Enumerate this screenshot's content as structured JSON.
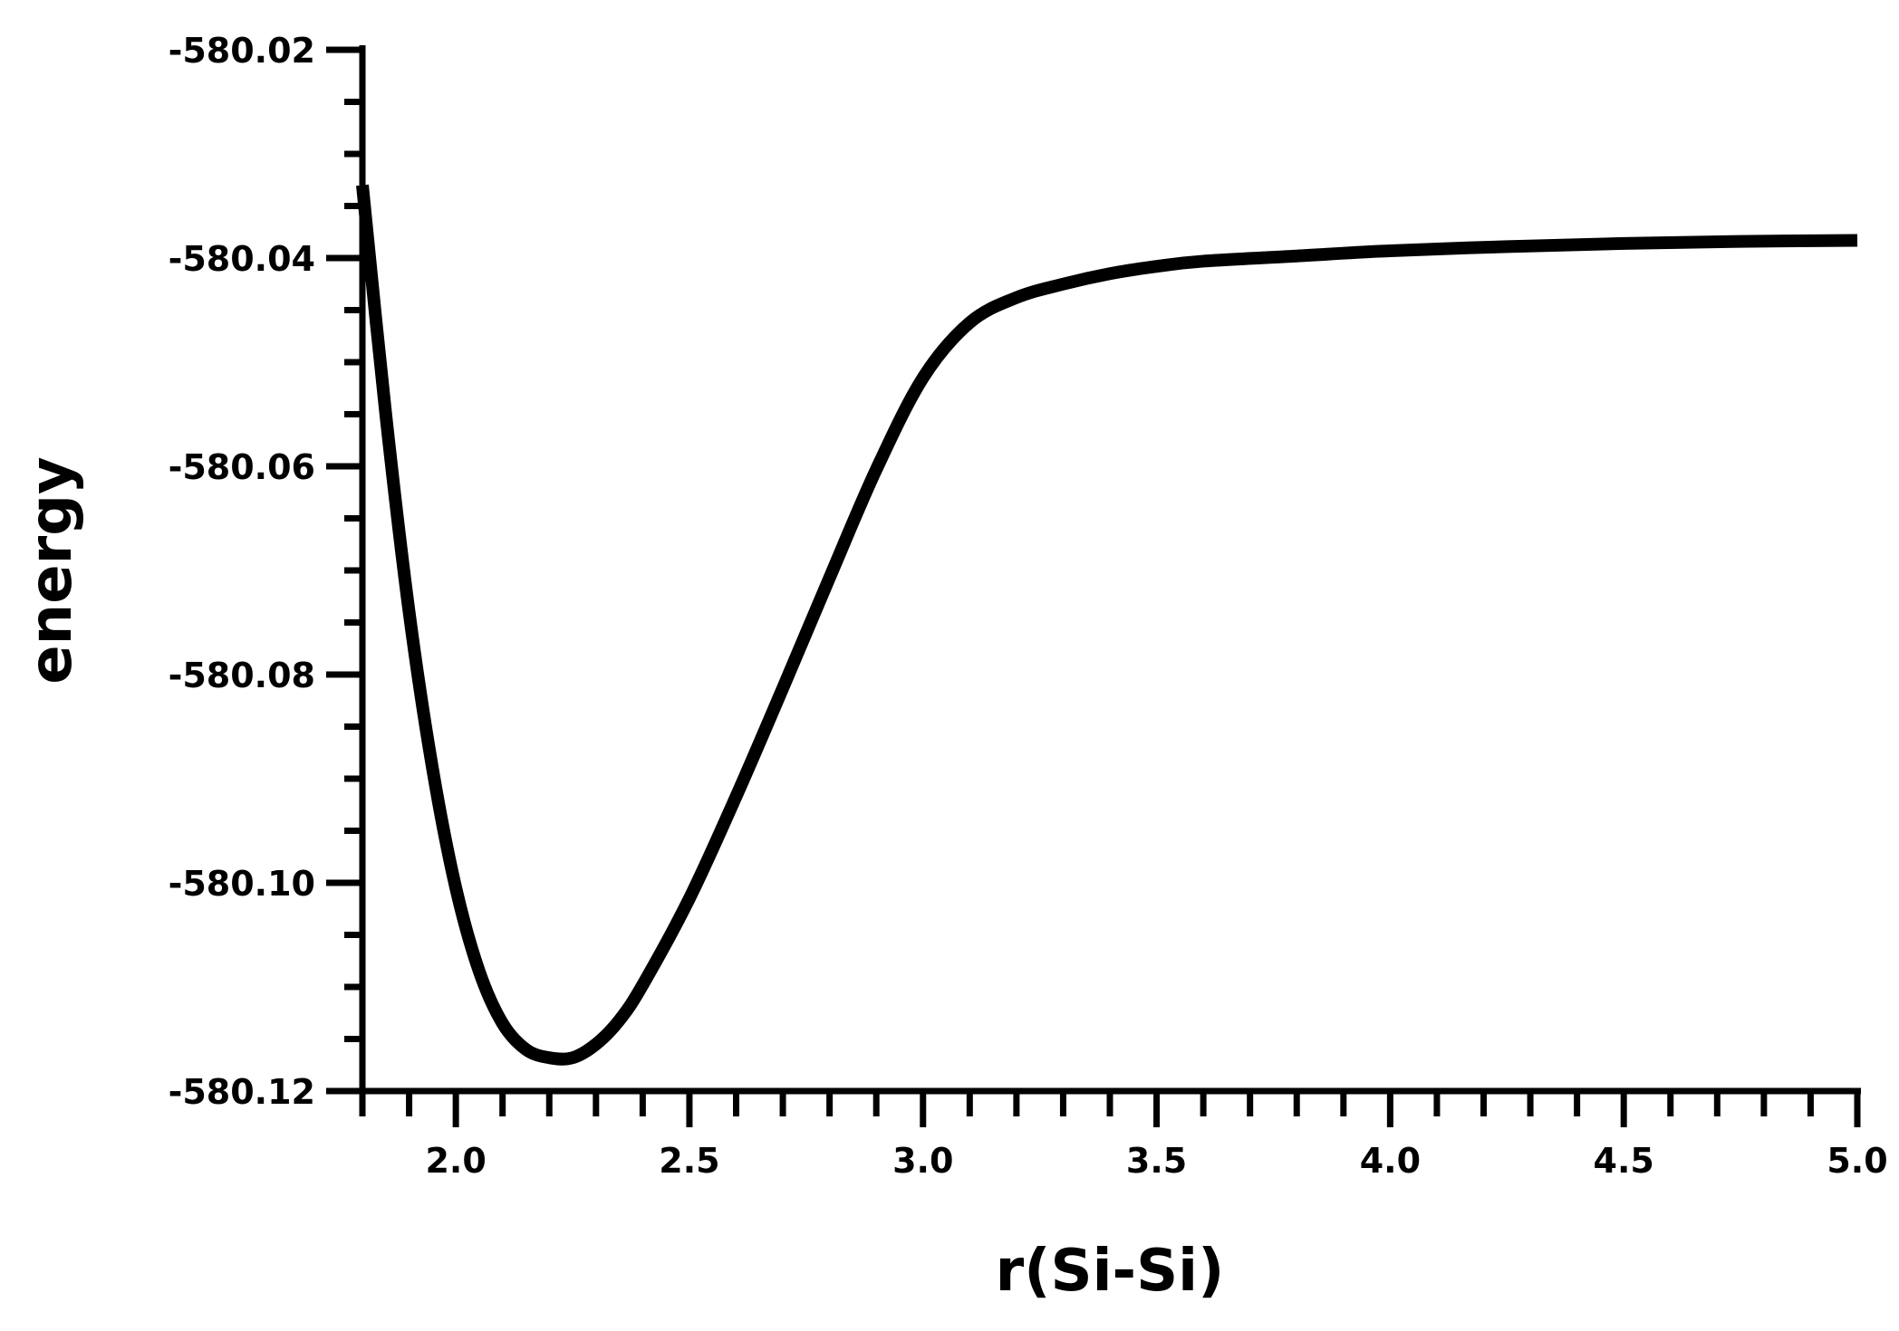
{
  "chart_data": {
    "type": "line",
    "title": "",
    "xlabel": "r(Si-Si)",
    "ylabel": "energy",
    "xlim": [
      1.8,
      5.0
    ],
    "ylim": [
      -580.12,
      -580.02
    ],
    "x_ticks": [
      2.0,
      2.5,
      3.0,
      3.5,
      4.0,
      4.5,
      5.0
    ],
    "x_tick_labels": [
      "2.0",
      "2.5",
      "3.0",
      "3.5",
      "4.0",
      "4.5",
      "5.0"
    ],
    "y_ticks": [
      -580.02,
      -580.04,
      -580.06,
      -580.08,
      -580.1,
      -580.12
    ],
    "y_tick_labels": [
      "-580.02",
      "-580.04",
      "-580.06",
      "-580.08",
      "-580.10",
      "-580.12"
    ],
    "grid": false,
    "line_color": "#000000",
    "series": [
      {
        "x": [
          1.8,
          1.85,
          1.9,
          1.95,
          2.0,
          2.05,
          2.1,
          2.15,
          2.2,
          2.25,
          2.3,
          2.35,
          2.4,
          2.5,
          2.6,
          2.7,
          2.8,
          2.9,
          3.0,
          3.1,
          3.2,
          3.3,
          3.4,
          3.5,
          3.6,
          3.8,
          4.0,
          4.25,
          4.5,
          4.75,
          5.0
        ],
        "y": [
          -580.033,
          -580.055,
          -580.074,
          -580.089,
          -580.1005,
          -580.1085,
          -580.1135,
          -580.116,
          -580.1168,
          -580.1168,
          -580.1155,
          -580.1132,
          -580.1098,
          -580.1015,
          -580.0917,
          -580.0813,
          -580.0707,
          -580.0603,
          -580.0515,
          -580.0462,
          -580.0438,
          -580.0425,
          -580.0415,
          -580.0408,
          -580.0403,
          -580.0398,
          -580.0393,
          -580.0389,
          -580.0386,
          -580.0384,
          -580.0383
        ]
      }
    ]
  }
}
